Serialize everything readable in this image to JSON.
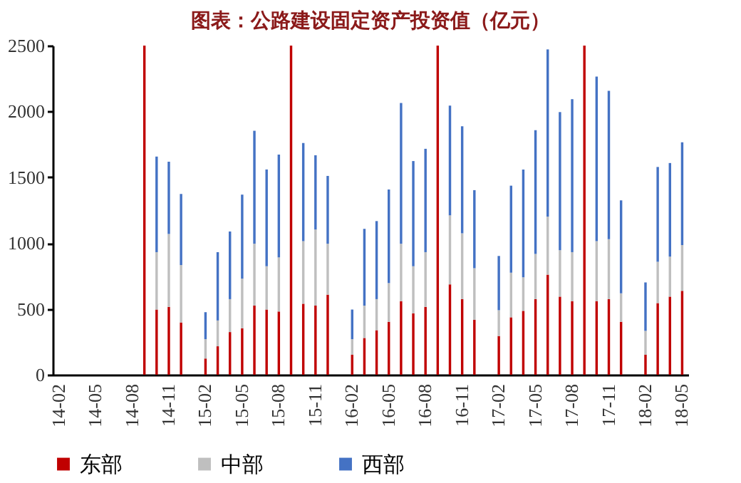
{
  "chart_data": {
    "type": "bar",
    "title": "图表：公路建设固定资产投资值（亿元）",
    "stacked": true,
    "legend": "bottom",
    "grid": false,
    "categories": [
      "14-02",
      null,
      null,
      "14-05",
      null,
      null,
      "14-08",
      null,
      null,
      "14-11",
      null,
      null,
      "15-02",
      null,
      null,
      "15-05",
      null,
      null,
      "15-08",
      null,
      null,
      "15-11",
      null,
      null,
      "16-02",
      null,
      null,
      "16-05",
      null,
      null,
      "16-08",
      null,
      null,
      "16-11",
      null,
      null,
      "17-02",
      null,
      null,
      "17-05",
      null,
      null,
      "17-08",
      null,
      null,
      "17-11",
      null,
      null,
      "18-02",
      null,
      null,
      "18-05"
    ],
    "ylim": [
      0,
      2500
    ],
    "yticks": [
      0,
      500,
      1000,
      1500,
      2000,
      2500
    ],
    "series": [
      {
        "name": "东部",
        "color": "#c00000",
        "values": [
          null,
          null,
          null,
          null,
          null,
          null,
          null,
          2500,
          495,
          515,
          397,
          null,
          123,
          216,
          324,
          353,
          525,
          495,
          480,
          2500,
          539,
          525,
          608,
          null,
          152,
          279,
          338,
          402,
          559,
          466,
          515,
          2500,
          686,
          574,
          417,
          null,
          294,
          436,
          485,
          574,
          760,
          593,
          559,
          2500,
          559,
          574,
          402,
          null,
          152,
          544,
          593,
          637
        ]
      },
      {
        "name": "中部",
        "color": "#bfbfbf",
        "values": [
          null,
          null,
          null,
          null,
          null,
          null,
          null,
          null,
          436,
          554,
          436,
          null,
          147,
          196,
          250,
          377,
          470,
          329,
          412,
          null,
          476,
          578,
          387,
          null,
          118,
          246,
          236,
          294,
          436,
          358,
          416,
          null,
          525,
          500,
          392,
          null,
          196,
          339,
          255,
          343,
          441,
          353,
          372,
          null,
          456,
          455,
          216,
          null,
          181,
          314,
          304,
          348
        ]
      },
      {
        "name": "西部",
        "color": "#4472c4",
        "values": [
          null,
          null,
          null,
          null,
          null,
          null,
          null,
          null,
          726,
          549,
          540,
          null,
          205,
          519,
          514,
          638,
          858,
          735,
          780,
          null,
          745,
          564,
          515,
          null,
          225,
          583,
          593,
          711,
          1069,
          799,
          785,
          null,
          833,
          813,
          593,
          null,
          412,
          661,
          819,
          941,
          1270,
          1049,
          1162,
          null,
          1250,
          1128,
          706,
          null,
          368,
          720,
          711,
          780
        ]
      }
    ]
  }
}
